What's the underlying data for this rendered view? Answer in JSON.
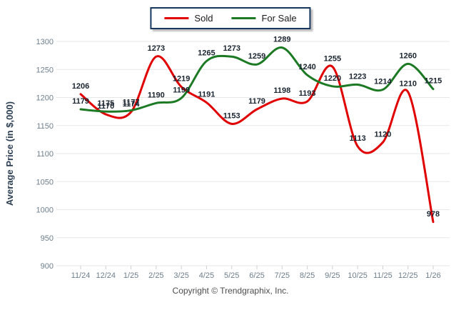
{
  "chart_data": {
    "type": "line",
    "title": "",
    "ylabel": "Average Price (in $,000)",
    "xlabel": "",
    "categories": [
      "11/24",
      "12/24",
      "1/25",
      "2/25",
      "3/25",
      "4/25",
      "5/25",
      "6/25",
      "7/25",
      "8/25",
      "9/25",
      "10/25",
      "11/25",
      "12/25",
      "1/26"
    ],
    "ylim": [
      900,
      1300
    ],
    "y_tick_step": 50,
    "y_tick_labels": [
      "900",
      "950",
      "1000",
      "1050",
      "1100",
      "1150",
      "1200",
      "1250",
      "1300"
    ],
    "grid": true,
    "legend_position": "top-center",
    "series": [
      {
        "name": "Sold",
        "color": "#e00000",
        "values": [
          1206,
          1170,
          1174,
          1273,
          1219,
          1191,
          1153,
          1179,
          1198,
          1193,
          1255,
          1113,
          1120,
          1210,
          978
        ]
      },
      {
        "name": "For Sale",
        "color": "#1d7a24",
        "values": [
          1179,
          1175,
          1177,
          1190,
          1199,
          1265,
          1273,
          1259,
          1289,
          1240,
          1220,
          1223,
          1214,
          1260,
          1215
        ]
      }
    ],
    "footer": "Copyright © Trendgraphix, Inc.",
    "colors": {
      "data_label": "#1a2430",
      "axis_text": "#6d7e8c",
      "grid": "#e7e7e7",
      "tick": "#cfcfcf",
      "axis_title": "#2e4055",
      "legend_border": "#17375e"
    }
  }
}
